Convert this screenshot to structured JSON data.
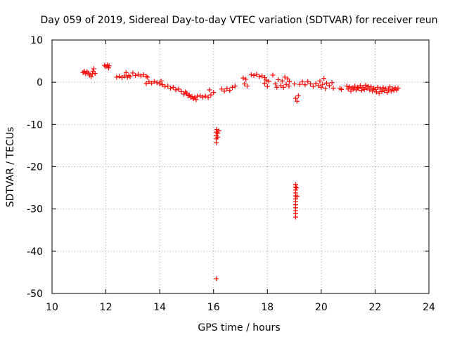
{
  "colors": {
    "marker": "#ff0000",
    "axis": "#000000",
    "grid": "#a0a0a0",
    "background": "#ffffff"
  },
  "chart_data": {
    "type": "scatter",
    "marker": "plus",
    "title": "Day 059 of 2019, Sidereal Day-to-day VTEC variation (SDTVAR) for receiver reun",
    "xlabel": "GPS time / hours",
    "ylabel": "SDTVAR / TECUs",
    "xlim": [
      10,
      24
    ],
    "ylim": [
      -50,
      10
    ],
    "grid": true,
    "x_ticks": [
      10,
      12,
      14,
      16,
      18,
      20,
      22,
      24
    ],
    "y_ticks": [
      -50,
      -40,
      -30,
      -20,
      -10,
      0,
      10
    ],
    "x_tick_labels": [
      "10",
      "12",
      "14",
      "16",
      "18",
      "20",
      "22",
      "24"
    ],
    "y_tick_labels": [
      "-50",
      "-40",
      "-30",
      "-20",
      "-10",
      "0",
      "10"
    ],
    "series": [
      {
        "name": "SDTVAR",
        "points": [
          [
            11.15,
            2.3
          ],
          [
            11.2,
            2.6
          ],
          [
            11.25,
            2.0
          ],
          [
            11.3,
            2.5
          ],
          [
            11.35,
            2.2
          ],
          [
            11.4,
            1.7
          ],
          [
            11.45,
            1.3
          ],
          [
            11.5,
            2.0
          ],
          [
            11.52,
            2.6
          ],
          [
            11.55,
            3.2
          ],
          [
            11.6,
            2.1
          ],
          [
            11.95,
            4.0
          ],
          [
            12.0,
            3.7
          ],
          [
            12.05,
            4.1
          ],
          [
            12.1,
            3.4
          ],
          [
            12.12,
            3.9
          ],
          [
            12.4,
            1.2
          ],
          [
            12.5,
            1.4
          ],
          [
            12.6,
            1.1
          ],
          [
            12.7,
            1.5
          ],
          [
            12.75,
            2.3
          ],
          [
            12.8,
            1.2
          ],
          [
            12.85,
            1.6
          ],
          [
            12.9,
            1.3
          ],
          [
            13.0,
            2.2
          ],
          [
            13.1,
            1.6
          ],
          [
            13.2,
            1.9
          ],
          [
            13.3,
            1.5
          ],
          [
            13.4,
            1.8
          ],
          [
            13.5,
            1.4
          ],
          [
            13.55,
            1.2
          ],
          [
            13.5,
            -0.3
          ],
          [
            13.6,
            0.1
          ],
          [
            13.7,
            -0.2
          ],
          [
            13.8,
            0.2
          ],
          [
            13.9,
            -0.1
          ],
          [
            14.0,
            -0.4
          ],
          [
            14.05,
            0.3
          ],
          [
            14.1,
            -0.6
          ],
          [
            14.2,
            -1.0
          ],
          [
            14.3,
            -0.9
          ],
          [
            14.4,
            -1.4
          ],
          [
            14.5,
            -1.2
          ],
          [
            14.6,
            -1.8
          ],
          [
            14.7,
            -1.6
          ],
          [
            14.8,
            -2.2
          ],
          [
            14.9,
            -2.8
          ],
          [
            14.95,
            -2.3
          ],
          [
            15.0,
            -2.6
          ],
          [
            15.05,
            -3.2
          ],
          [
            15.1,
            -3.0
          ],
          [
            15.15,
            -3.5
          ],
          [
            15.2,
            -3.4
          ],
          [
            15.25,
            -3.9
          ],
          [
            15.3,
            -3.6
          ],
          [
            15.35,
            -4.1
          ],
          [
            15.4,
            -3.3
          ],
          [
            15.5,
            -3.2
          ],
          [
            15.6,
            -3.5
          ],
          [
            15.7,
            -3.3
          ],
          [
            15.8,
            -3.6
          ],
          [
            15.85,
            -1.8
          ],
          [
            15.9,
            -3.0
          ],
          [
            16.0,
            -2.4
          ],
          [
            16.1,
            -11.8
          ],
          [
            16.1,
            -12.6
          ],
          [
            16.1,
            -13.4
          ],
          [
            16.1,
            -14.3
          ],
          [
            16.12,
            -11.2
          ],
          [
            16.15,
            -12.1
          ],
          [
            16.15,
            -13.0
          ],
          [
            16.2,
            -11.5
          ],
          [
            16.1,
            -46.5
          ],
          [
            16.3,
            -1.6
          ],
          [
            16.4,
            -2.1
          ],
          [
            16.5,
            -1.5
          ],
          [
            16.6,
            -1.9
          ],
          [
            16.7,
            -1.2
          ],
          [
            16.8,
            -0.9
          ],
          [
            17.1,
            1.0
          ],
          [
            17.15,
            -0.4
          ],
          [
            17.2,
            0.7
          ],
          [
            17.25,
            -0.9
          ],
          [
            17.4,
            1.8
          ],
          [
            17.5,
            1.6
          ],
          [
            17.6,
            1.9
          ],
          [
            17.7,
            1.3
          ],
          [
            17.8,
            1.5
          ],
          [
            17.9,
            1.1
          ],
          [
            17.9,
            -0.3
          ],
          [
            17.95,
            0.5
          ],
          [
            18.0,
            -1.0
          ],
          [
            18.05,
            0.2
          ],
          [
            18.2,
            1.7
          ],
          [
            18.3,
            -0.4
          ],
          [
            18.35,
            -1.2
          ],
          [
            18.4,
            0.6
          ],
          [
            18.5,
            -0.8
          ],
          [
            18.55,
            0.3
          ],
          [
            18.6,
            -1.2
          ],
          [
            18.65,
            1.2
          ],
          [
            18.7,
            -0.5
          ],
          [
            18.75,
            0.8
          ],
          [
            18.8,
            -0.9
          ],
          [
            18.82,
            0.2
          ],
          [
            19.0,
            -0.4
          ],
          [
            19.05,
            -3.8
          ],
          [
            19.1,
            -4.5
          ],
          [
            19.15,
            -3.2
          ],
          [
            19.2,
            -0.5
          ],
          [
            19.3,
            0.1
          ],
          [
            19.4,
            -0.6
          ],
          [
            19.5,
            0.2
          ],
          [
            19.6,
            -0.4
          ],
          [
            19.7,
            -1.0
          ],
          [
            19.8,
            -0.3
          ],
          [
            19.9,
            -0.8
          ],
          [
            19.95,
            0.3
          ],
          [
            20.0,
            -1.2
          ],
          [
            20.05,
            -0.5
          ],
          [
            20.1,
            0.9
          ],
          [
            20.15,
            -1.5
          ],
          [
            20.2,
            -0.2
          ],
          [
            20.3,
            -0.8
          ],
          [
            20.4,
            -0.1
          ],
          [
            20.45,
            -1.4
          ],
          [
            19.05,
            -24.2
          ],
          [
            19.05,
            -24.8
          ],
          [
            19.05,
            -25.5
          ],
          [
            19.05,
            -26.2
          ],
          [
            19.05,
            -26.9
          ],
          [
            19.05,
            -27.6
          ],
          [
            19.05,
            -28.3
          ],
          [
            19.05,
            -29.0
          ],
          [
            19.05,
            -29.7
          ],
          [
            19.05,
            -30.4
          ],
          [
            19.05,
            -31.1
          ],
          [
            19.05,
            -31.9
          ],
          [
            19.08,
            -25.0
          ],
          [
            19.1,
            -27.0
          ],
          [
            20.7,
            -1.4
          ],
          [
            20.75,
            -1.7
          ],
          [
            20.95,
            -0.9
          ],
          [
            21.0,
            -1.6
          ],
          [
            21.05,
            -1.1
          ],
          [
            21.1,
            -2.1
          ],
          [
            21.15,
            -1.3
          ],
          [
            21.2,
            -1.6
          ],
          [
            21.25,
            -0.9
          ],
          [
            21.3,
            -1.8
          ],
          [
            21.35,
            -1.2
          ],
          [
            21.4,
            -1.5
          ],
          [
            21.45,
            -0.8
          ],
          [
            21.5,
            -1.9
          ],
          [
            21.55,
            -1.2
          ],
          [
            21.6,
            -1.7
          ],
          [
            21.65,
            -0.7
          ],
          [
            21.7,
            -1.4
          ],
          [
            21.75,
            -1.0
          ],
          [
            21.8,
            -1.8
          ],
          [
            21.85,
            -1.1
          ],
          [
            21.9,
            -2.1
          ],
          [
            21.95,
            -1.4
          ],
          [
            22.0,
            -1.7
          ],
          [
            22.05,
            -2.3
          ],
          [
            22.1,
            -1.2
          ],
          [
            22.15,
            -2.6
          ],
          [
            22.2,
            -1.6
          ],
          [
            22.25,
            -2.2
          ],
          [
            22.3,
            -1.3
          ],
          [
            22.35,
            -2.0
          ],
          [
            22.4,
            -1.5
          ],
          [
            22.45,
            -2.4
          ],
          [
            22.5,
            -1.8
          ],
          [
            22.55,
            -1.1
          ],
          [
            22.6,
            -2.1
          ],
          [
            22.65,
            -1.6
          ],
          [
            22.7,
            -1.9
          ],
          [
            22.75,
            -1.3
          ],
          [
            22.8,
            -1.8
          ],
          [
            22.85,
            -1.4
          ]
        ]
      }
    ]
  }
}
